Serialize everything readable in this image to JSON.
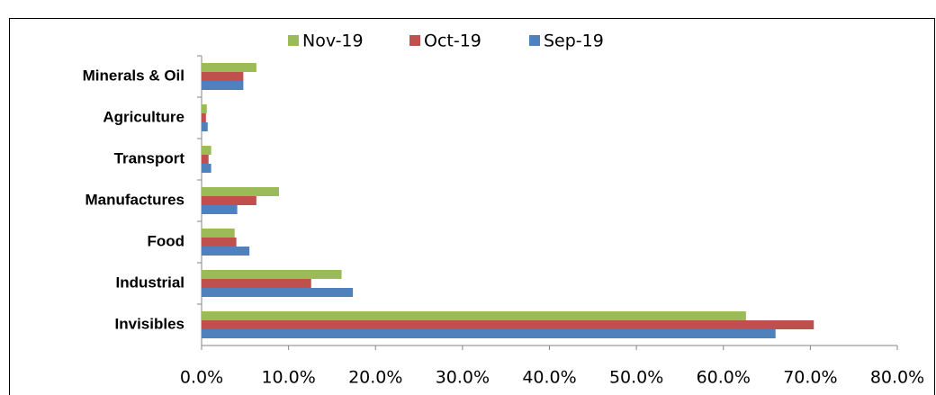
{
  "chart_data": {
    "type": "hbar",
    "categories": [
      "Minerals & Oil",
      "Agriculture",
      "Transport",
      "Manufactures",
      "Food",
      "Industrial",
      "Invisibles"
    ],
    "series": [
      {
        "name": "Nov-19",
        "color": "#9bbb59",
        "values": [
          6.3,
          0.6,
          1.1,
          8.9,
          3.8,
          16.1,
          62.6
        ]
      },
      {
        "name": "Oct-19",
        "color": "#c0504d",
        "values": [
          4.8,
          0.5,
          0.8,
          6.3,
          4.0,
          12.6,
          70.4
        ]
      },
      {
        "name": "Sep-19",
        "color": "#4f81bd",
        "values": [
          4.8,
          0.7,
          1.1,
          4.1,
          5.5,
          17.4,
          66.0
        ]
      }
    ],
    "xlim": [
      0,
      80
    ],
    "xticks": [
      {
        "value": 0,
        "label": "0.0%"
      },
      {
        "value": 10,
        "label": "10.0%"
      },
      {
        "value": 20,
        "label": "20.0%"
      },
      {
        "value": 30,
        "label": "30.0%"
      },
      {
        "value": 40,
        "label": "40.0%"
      },
      {
        "value": 50,
        "label": "50.0%"
      },
      {
        "value": 60,
        "label": "60.0%"
      },
      {
        "value": 70,
        "label": "70.0%"
      },
      {
        "value": 80,
        "label": "80.0%"
      }
    ],
    "legend": "top"
  }
}
